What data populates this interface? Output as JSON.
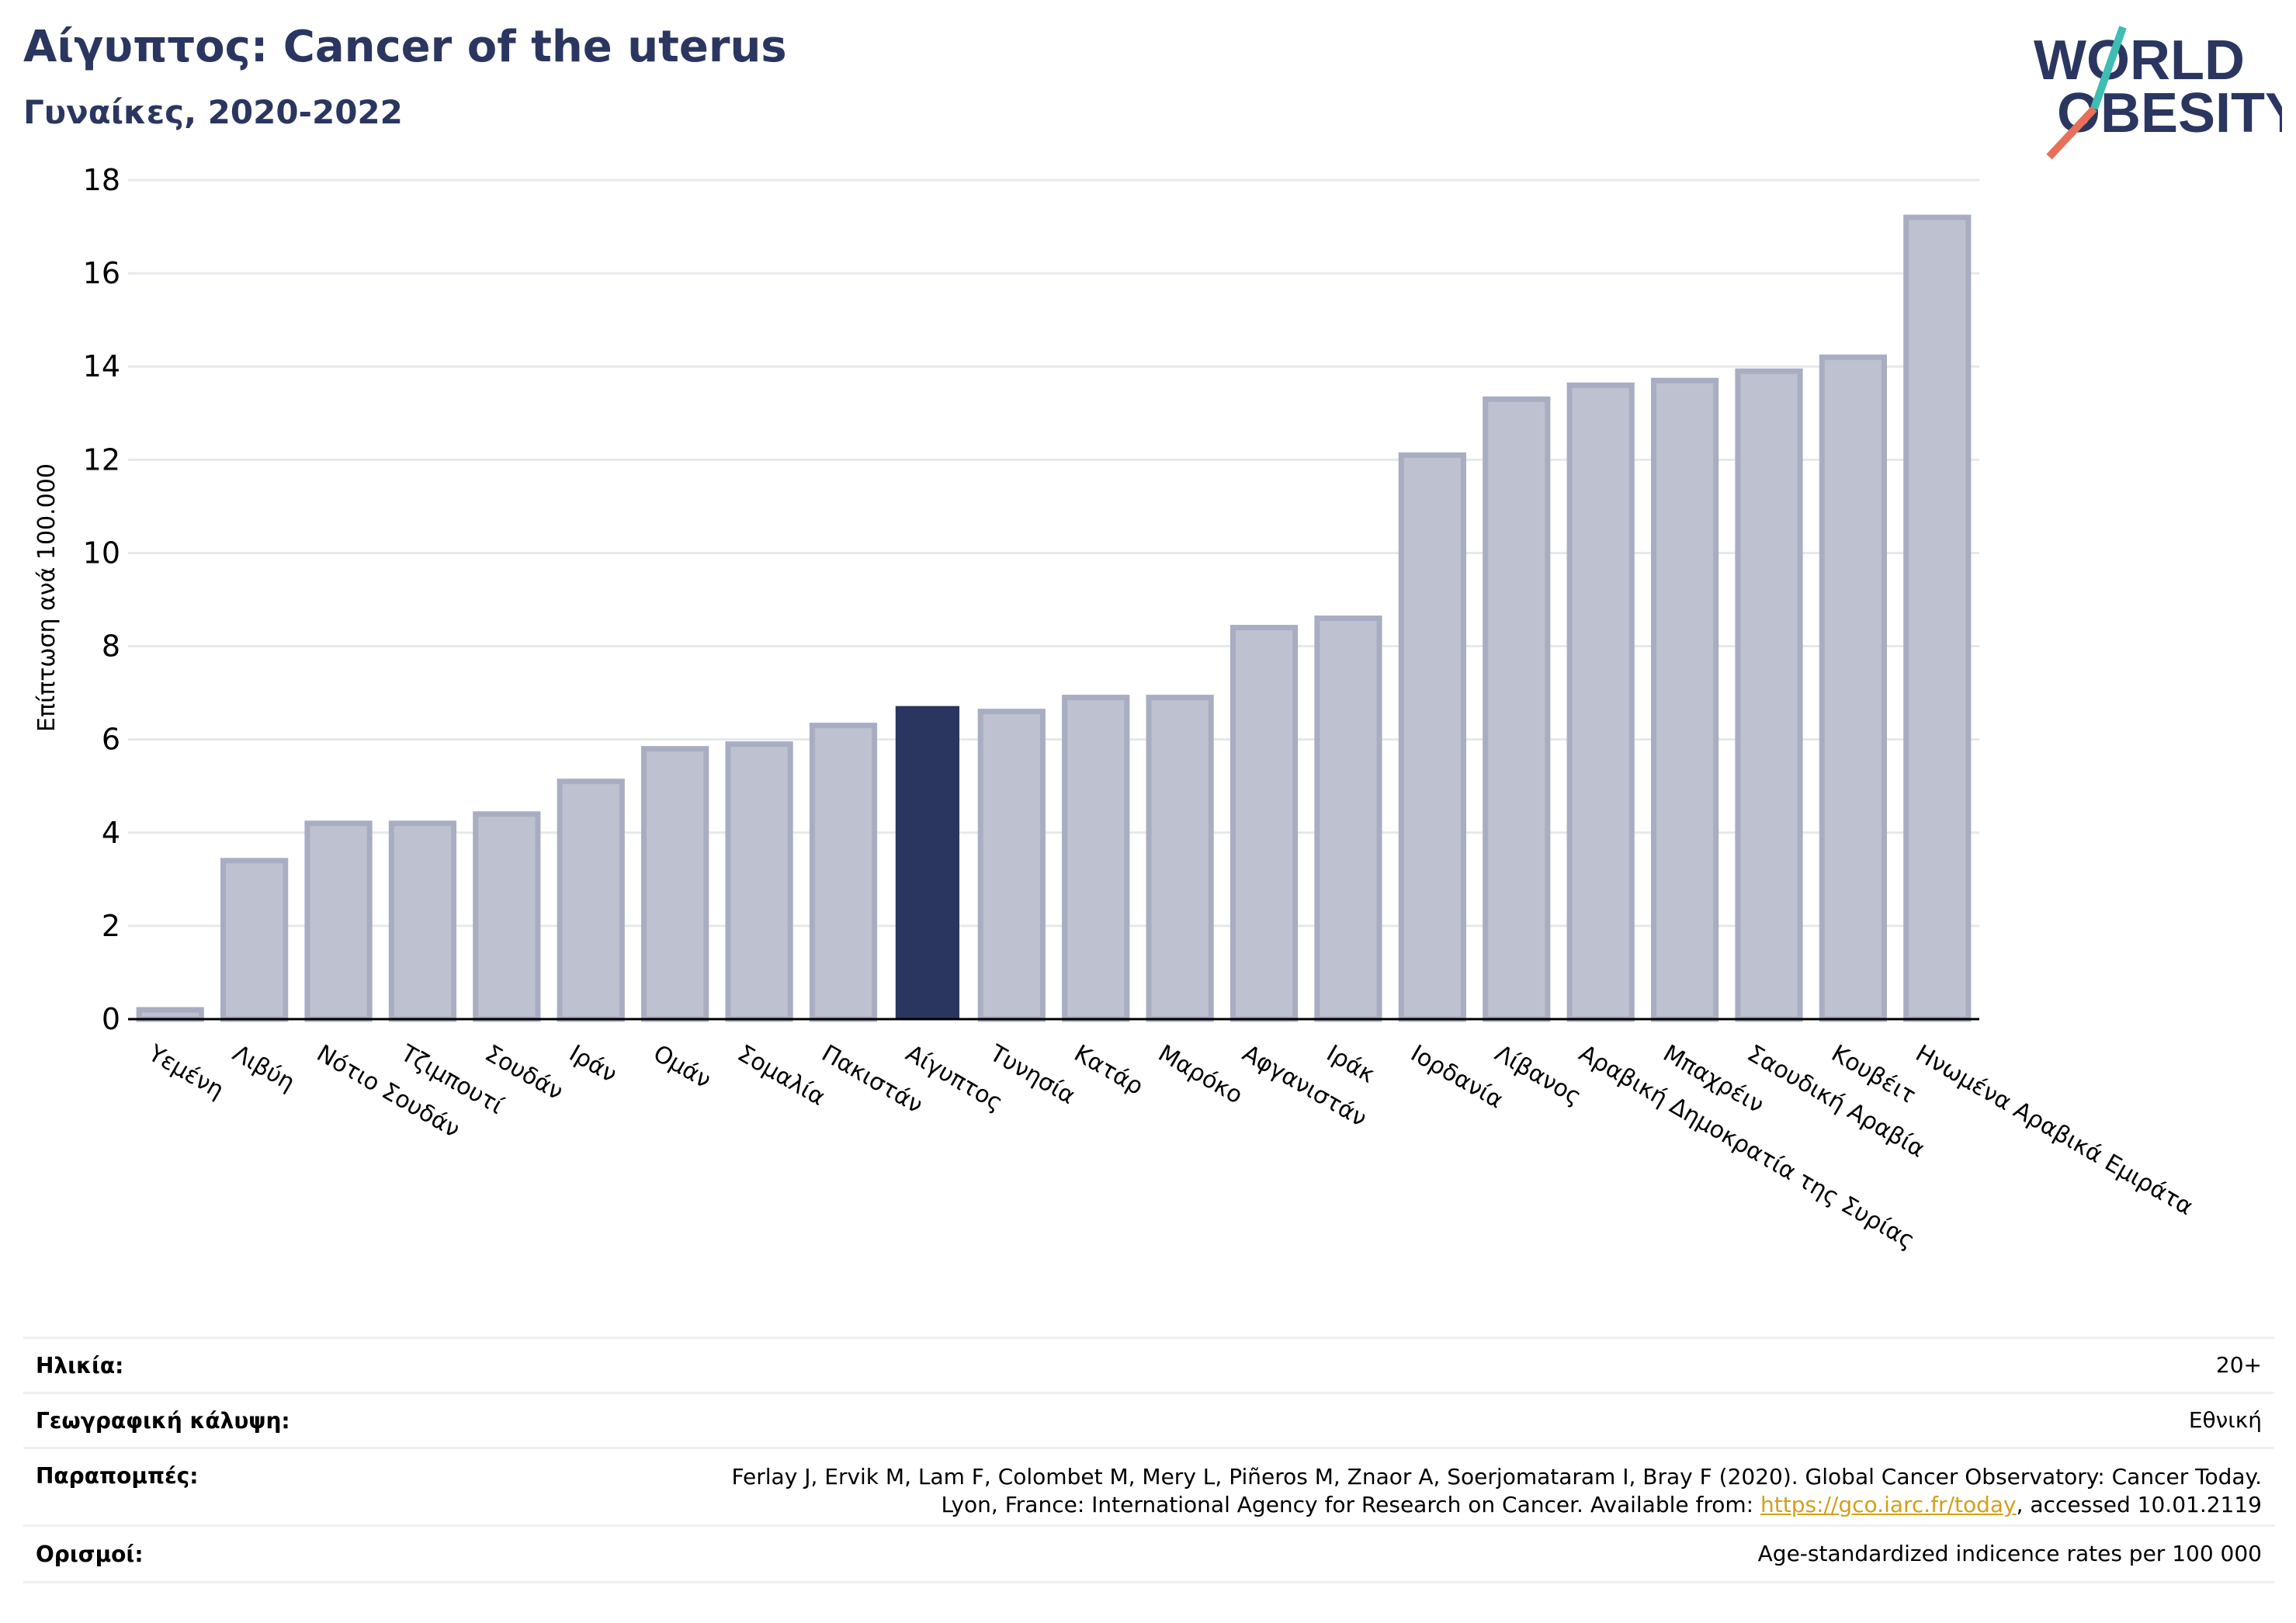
{
  "header": {
    "title": "Αίγυπτος: Cancer of the uterus",
    "subtitle": "Γυναίκες, 2020-2022"
  },
  "logo": {
    "line1": "WORLD",
    "line2": "OBESITY",
    "accent_teal": "#3dbdb3",
    "accent_coral": "#e8705a",
    "text_color": "#2b3660"
  },
  "chart_data": {
    "type": "bar",
    "ylabel": "Επίπτωση ανά 100.000",
    "ylim": [
      0,
      18
    ],
    "yticks": [
      0,
      2,
      4,
      6,
      8,
      10,
      12,
      14,
      16,
      18
    ],
    "grid": true,
    "highlight": "Αίγυπτος",
    "bar_color": "#bec1cf",
    "bar_edge_color": "#a9adc2",
    "highlight_color": "#2b3660",
    "categories": [
      "Υεμένη",
      "Λιβύη",
      "Νότιο Σουδάν",
      "Τζιμπουτί",
      "Σουδάν",
      "Ιράν",
      "Ομάν",
      "Σομαλία",
      "Πακιστάν",
      "Αίγυπτος",
      "Τυνησία",
      "Κατάρ",
      "Μαρόκο",
      "Αφγανιστάν",
      "Ιράκ",
      "Ιορδανία",
      "Λίβανος",
      "Αραβική Δημοκρατία της Συρίας",
      "Μπαχρέιν",
      "Σαουδική Αραβία",
      "Κουβέιτ",
      "Ηνωμένα Αραβικά Εμιράτα"
    ],
    "values": [
      0.2,
      3.4,
      4.2,
      4.2,
      4.4,
      5.1,
      5.8,
      5.9,
      6.3,
      6.7,
      6.6,
      6.9,
      6.9,
      8.4,
      8.6,
      12.1,
      13.3,
      13.6,
      13.7,
      13.9,
      14.2,
      17.2
    ]
  },
  "meta": {
    "age_label": "Ηλικία:",
    "age_value": "20+",
    "coverage_label": "Γεωγραφική κάλυψη:",
    "coverage_value": "Εθνική",
    "refs_label": "Παραπομπές:",
    "refs_line1": "Ferlay J, Ervik M, Lam F, Colombet M, Mery L, Piñeros M, Znaor A, Soerjomataram I, Bray F (2020). Global Cancer Observatory: Cancer Today.",
    "refs_line2_pre": "Lyon, France: International Agency for Research on Cancer. Available from: ",
    "refs_link": "https://gco.iarc.fr/today",
    "refs_line2_post": ", accessed 10.01.2119",
    "defs_label": "Ορισμοί:",
    "defs_value": "Age-standardized indicence rates per 100 000"
  }
}
